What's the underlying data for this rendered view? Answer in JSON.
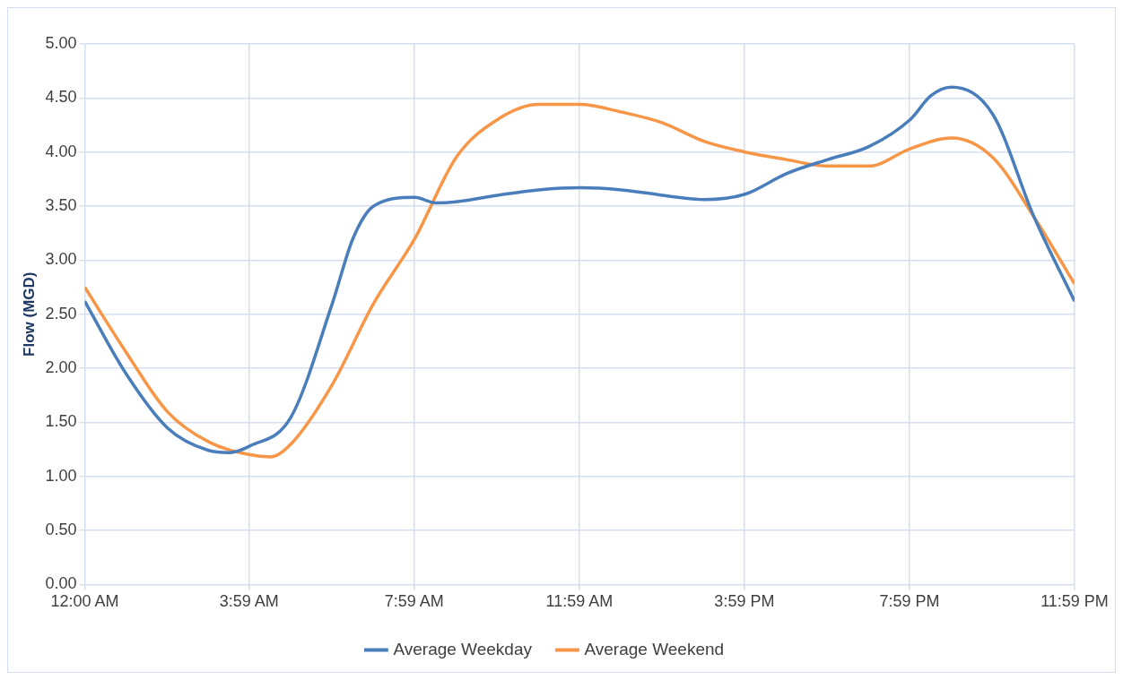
{
  "chart_data": {
    "type": "line",
    "ylabel": "Flow (MGD)",
    "xlim": [
      0,
      23.983
    ],
    "xticks": [
      {
        "value": 0,
        "label": "12:00 AM"
      },
      {
        "value": 3.983,
        "label": "3:59 AM"
      },
      {
        "value": 7.983,
        "label": "7:59 AM"
      },
      {
        "value": 11.983,
        "label": "11:59 AM"
      },
      {
        "value": 15.983,
        "label": "3:59 PM"
      },
      {
        "value": 19.983,
        "label": "7:59 PM"
      },
      {
        "value": 23.983,
        "label": "11:59 PM"
      }
    ],
    "ylim": [
      0,
      5
    ],
    "yticks": [
      {
        "value": 0,
        "label": "0.00"
      },
      {
        "value": 0.5,
        "label": "0.50"
      },
      {
        "value": 1,
        "label": "1.00"
      },
      {
        "value": 1.5,
        "label": "1.50"
      },
      {
        "value": 2,
        "label": "2.00"
      },
      {
        "value": 2.5,
        "label": "2.50"
      },
      {
        "value": 3,
        "label": "3.00"
      },
      {
        "value": 3.5,
        "label": "3.50"
      },
      {
        "value": 4,
        "label": "4.00"
      },
      {
        "value": 4.5,
        "label": "4.50"
      },
      {
        "value": 5,
        "label": "5.00"
      }
    ],
    "grid": true,
    "legend": "bottom",
    "marker": "none",
    "line_style": "solid",
    "series": [
      {
        "name": "Average Weekday",
        "color": "#4a7ebb",
        "x": [
          0,
          1,
          2,
          3,
          3.5,
          4,
          5,
          6,
          6.5,
          7,
          8,
          8.5,
          9,
          10,
          11,
          12,
          13,
          14,
          15,
          16,
          17,
          18,
          19,
          20,
          20.5,
          21,
          22,
          23,
          23.983
        ],
        "values": [
          2.62,
          1.95,
          1.45,
          1.24,
          1.22,
          1.28,
          1.55,
          2.6,
          3.2,
          3.5,
          3.58,
          3.53,
          3.54,
          3.6,
          3.65,
          3.67,
          3.65,
          3.6,
          3.56,
          3.61,
          3.8,
          3.93,
          4.05,
          4.3,
          4.52,
          4.6,
          4.35,
          3.4,
          2.62
        ]
      },
      {
        "name": "Average Weekend",
        "color": "#f79646",
        "x": [
          0,
          1,
          2,
          3,
          4,
          4.5,
          5,
          6,
          7,
          8,
          9,
          10,
          11,
          12,
          13,
          14,
          15,
          16,
          17,
          18,
          19,
          20,
          21,
          22,
          23,
          23.983
        ],
        "values": [
          2.75,
          2.15,
          1.6,
          1.32,
          1.2,
          1.18,
          1.3,
          1.85,
          2.6,
          3.2,
          3.95,
          4.3,
          4.44,
          4.44,
          4.37,
          4.27,
          4.1,
          4.0,
          3.93,
          3.87,
          3.87,
          4.03,
          4.13,
          3.95,
          3.4,
          2.78
        ]
      }
    ]
  }
}
